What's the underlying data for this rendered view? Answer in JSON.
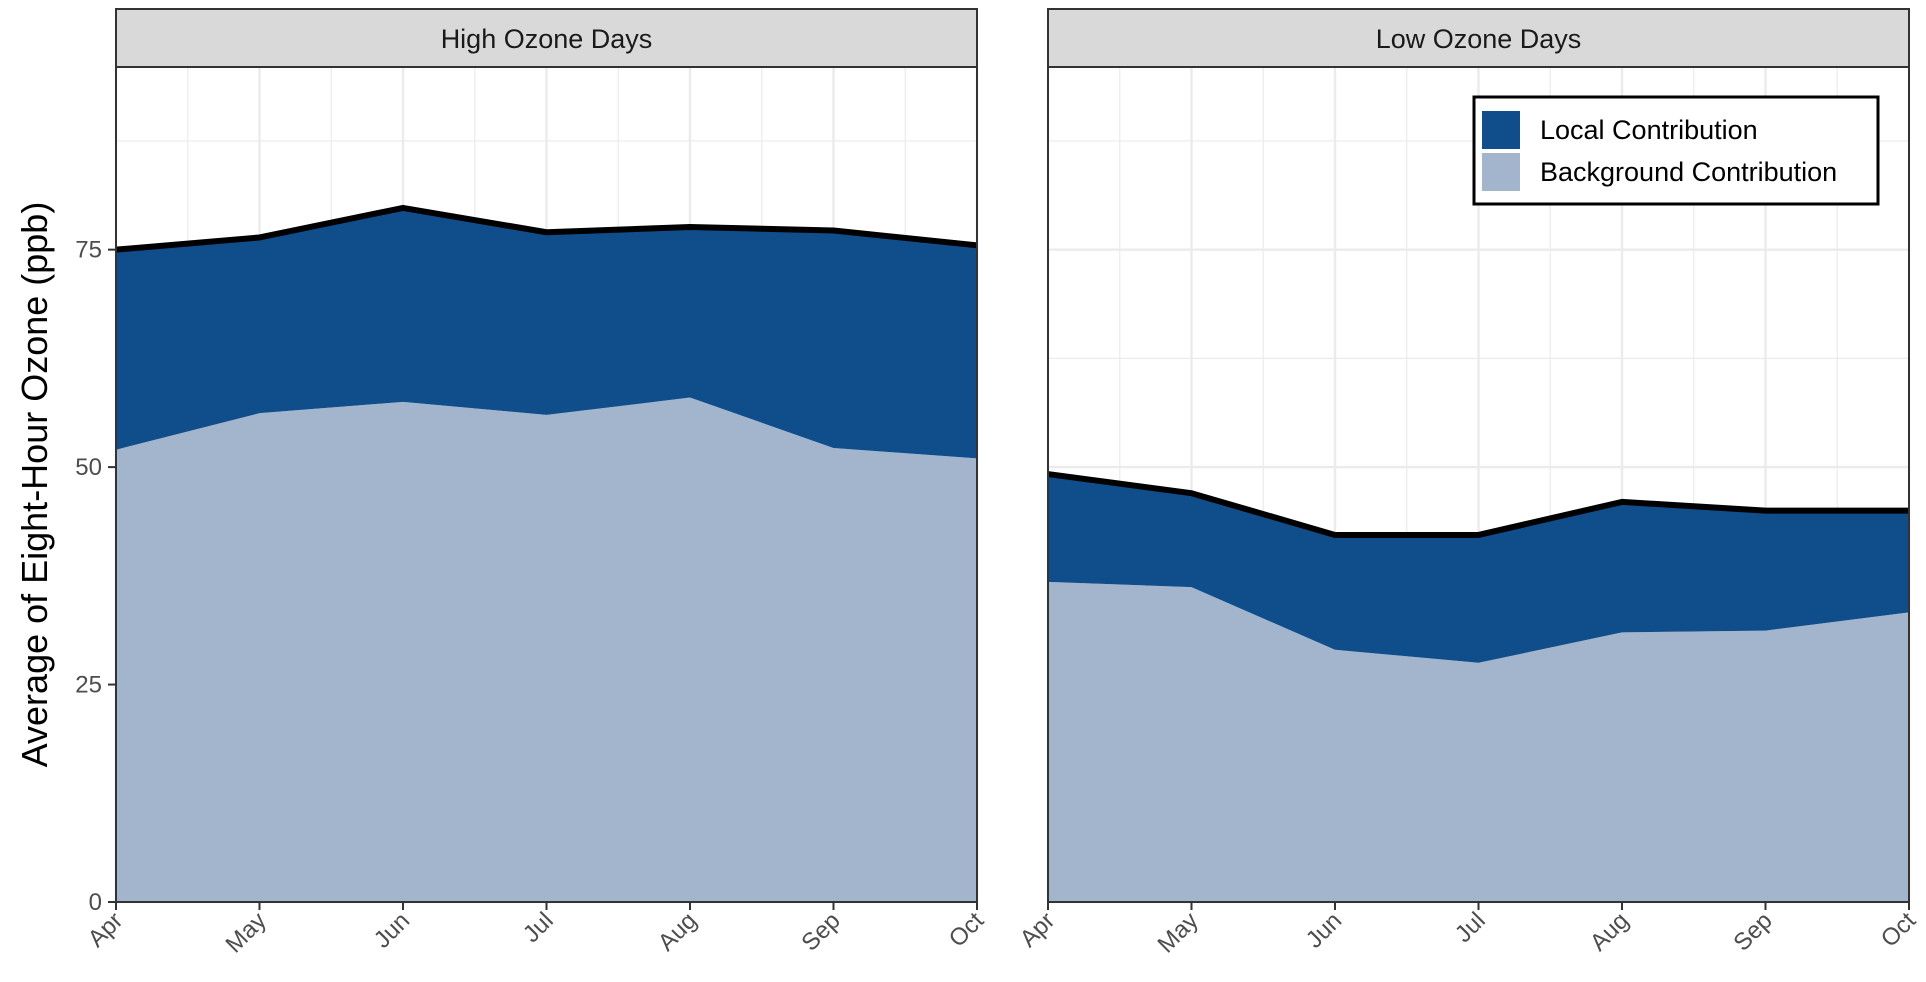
{
  "chart_data": {
    "type": "area",
    "ylabel": "Average of Eight-Hour Ozone (ppb)",
    "xlabel": "",
    "x": [
      "Apr",
      "May",
      "Jun",
      "Jul",
      "Aug",
      "Sep",
      "Oct"
    ],
    "ylim": [
      0,
      96
    ],
    "yticks": [
      0,
      25,
      50,
      75
    ],
    "grid": true,
    "stacked": true,
    "legend_position": "top-right",
    "colors": {
      "local": "#104e8b",
      "background": "#a2b5cd",
      "total_line": "#000000",
      "strip_fill": "#d9d9d9",
      "grid": "#ebebeb",
      "panel_border": "#333333"
    },
    "legend": [
      {
        "key": "local",
        "label": "Local Contribution"
      },
      {
        "key": "background",
        "label": "Background Contribution"
      }
    ],
    "panels": [
      {
        "title": "High Ozone Days",
        "series": [
          {
            "key": "background",
            "values": [
              52.0,
              56.2,
              57.5,
              56.0,
              58.0,
              52.2,
              51.0
            ]
          },
          {
            "key": "local",
            "values": [
              23.0,
              20.2,
              22.3,
              21.0,
              19.6,
              25.0,
              24.5
            ]
          }
        ],
        "total": [
          75.0,
          76.4,
          79.8,
          77.0,
          77.6,
          77.2,
          75.5
        ]
      },
      {
        "title": "Low Ozone Days",
        "series": [
          {
            "key": "background",
            "values": [
              36.8,
              36.2,
              29.0,
              27.5,
              31.0,
              31.2,
              33.3
            ]
          },
          {
            "key": "local",
            "values": [
              12.4,
              10.8,
              13.2,
              14.7,
              15.0,
              13.8,
              11.7
            ]
          }
        ],
        "total": [
          49.2,
          47.0,
          42.2,
          42.2,
          46.0,
          45.0,
          45.0
        ]
      }
    ]
  }
}
